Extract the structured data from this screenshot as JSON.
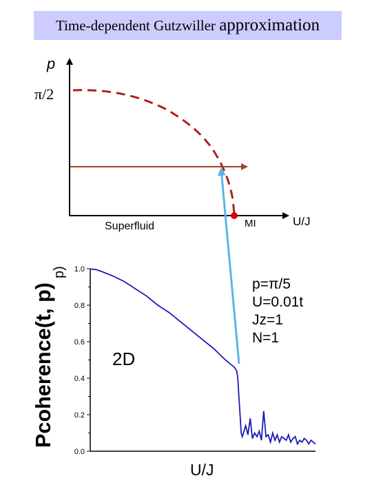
{
  "title": {
    "main": "Time-dependent Gutzwiller",
    "last_word": "approximation"
  },
  "colors": {
    "title_bg": "#ccccff",
    "boundary": "#b01e1e",
    "trajectory": "#a0461e",
    "arrow": "#5ab4e6",
    "curve": "#1a1ab4",
    "point": "#dd0000"
  },
  "phase_diagram": {
    "y_label": "p",
    "y_tick": "π/2",
    "x_label": "U/J",
    "region_left": "Superfluid",
    "region_right": "MI"
  },
  "chart_data": {
    "type": "line",
    "x_label": "U/J",
    "y_label_rotated": "Pcoherence(t, p)",
    "y_label_visible_fragment": "p)",
    "ylim": [
      0.0,
      1.0
    ],
    "yticks": [
      "1.0",
      "0.8",
      "0.6",
      "0.4",
      "0.2",
      "0.0"
    ],
    "tick_values": [
      1.0,
      0.8,
      0.6,
      0.4,
      0.2,
      0.0
    ],
    "panel_label": "2D",
    "params": [
      "p=π/5",
      "U=0.01t",
      "Jz=1",
      "N=1"
    ],
    "series": [
      {
        "x": [
          0.0,
          0.025,
          0.05,
          0.1,
          0.15,
          0.2,
          0.25,
          0.3,
          0.35,
          0.4,
          0.45,
          0.5,
          0.55,
          0.6,
          0.62,
          0.64,
          0.65,
          0.655,
          0.66,
          0.665,
          0.67,
          0.675,
          0.68,
          0.69,
          0.7,
          0.71,
          0.72,
          0.73,
          0.74,
          0.75,
          0.76,
          0.77,
          0.78,
          0.79,
          0.8,
          0.81,
          0.82,
          0.83,
          0.84,
          0.85,
          0.86,
          0.87,
          0.88,
          0.89,
          0.9,
          0.91,
          0.92,
          0.93,
          0.94,
          0.95,
          0.96,
          0.97,
          0.98,
          0.99,
          1.0
        ],
        "y": [
          0.998,
          0.995,
          0.985,
          0.96,
          0.93,
          0.89,
          0.85,
          0.8,
          0.76,
          0.71,
          0.66,
          0.61,
          0.56,
          0.5,
          0.48,
          0.46,
          0.44,
          0.4,
          0.3,
          0.2,
          0.1,
          0.08,
          0.1,
          0.14,
          0.09,
          0.18,
          0.07,
          0.1,
          0.08,
          0.11,
          0.06,
          0.22,
          0.08,
          0.09,
          0.05,
          0.1,
          0.06,
          0.09,
          0.05,
          0.08,
          0.07,
          0.06,
          0.09,
          0.05,
          0.07,
          0.08,
          0.04,
          0.06,
          0.05,
          0.07,
          0.06,
          0.04,
          0.06,
          0.05,
          0.04
        ]
      }
    ]
  }
}
